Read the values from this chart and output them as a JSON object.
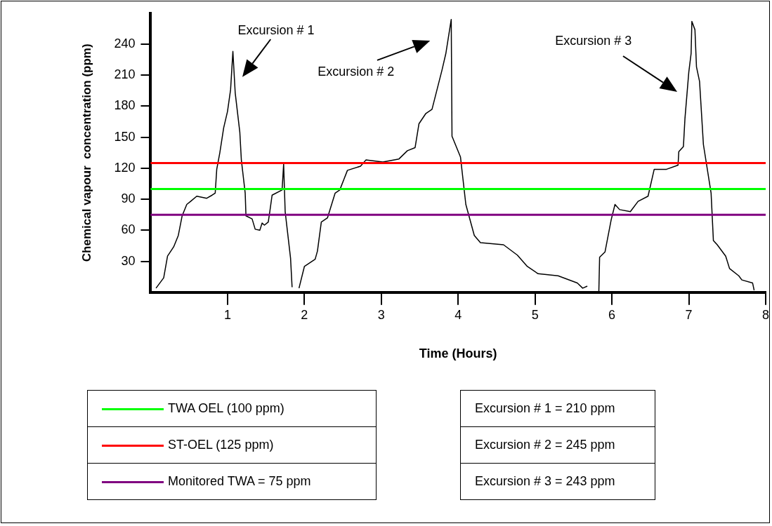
{
  "chart_data": {
    "type": "line",
    "xlabel": "Time (Hours)",
    "ylabel": "Chemical vapour  concentration (ppm)",
    "xlim": [
      0,
      8
    ],
    "xticks": [
      1,
      2,
      3,
      4,
      5,
      6,
      7,
      8
    ],
    "ylim": [
      0,
      270
    ],
    "yticks": [
      30,
      60,
      90,
      120,
      150,
      180,
      210,
      240
    ],
    "grid": false,
    "legend": "bottom",
    "marker": "none",
    "line_style": "solid",
    "series": [
      {
        "color": "#000000",
        "x": [
          0.07,
          0.17,
          0.22,
          0.3,
          0.36,
          0.41,
          0.47,
          0.52,
          0.6,
          0.73,
          0.8,
          0.84,
          0.86,
          0.9,
          0.95,
          1.0,
          1.04,
          1.07,
          1.1,
          1.16,
          1.18,
          1.23,
          1.24,
          1.32,
          1.36,
          1.42,
          1.45,
          1.48,
          1.53,
          1.55,
          1.58,
          1.71,
          1.73,
          1.75,
          1.82,
          1.84,
          1.88,
          1.93,
          2.0,
          2.14,
          2.17,
          2.22,
          2.3,
          2.4,
          2.46,
          2.56,
          2.73,
          2.8,
          3.02,
          3.23,
          3.34,
          3.44,
          3.49,
          3.58,
          3.66,
          3.79,
          3.84,
          3.91,
          3.92,
          4.03,
          4.1,
          4.21,
          4.29,
          4.59,
          4.77,
          4.9,
          5.04,
          5.3,
          5.55,
          5.62,
          5.68,
          5.75,
          5.83,
          5.84,
          5.91,
          5.99,
          6.04,
          6.1,
          6.24,
          6.34,
          6.47,
          6.55,
          6.71,
          6.86,
          6.87,
          6.93,
          6.95,
          7.0,
          7.03,
          7.04,
          7.08,
          7.1,
          7.14,
          7.19,
          7.29,
          7.32,
          7.37,
          7.48,
          7.53,
          7.65,
          7.69,
          7.83,
          7.85
        ],
        "values": [
          4,
          14,
          35,
          44,
          55,
          74,
          85,
          88,
          93,
          91,
          94,
          96,
          119,
          135,
          159,
          175,
          196,
          233,
          193,
          155,
          128,
          96,
          74,
          71,
          61,
          60,
          67,
          65,
          68,
          78,
          94,
          99,
          124,
          78,
          33,
          5,
          null,
          4,
          25,
          32,
          40,
          68,
          72,
          96,
          99,
          118,
          122,
          128,
          126,
          129,
          137,
          140,
          163,
          173,
          177,
          215,
          231,
          264,
          151,
          131,
          85,
          55,
          48,
          46,
          36,
          25,
          18,
          16,
          9,
          4,
          6,
          null,
          1,
          34,
          39,
          70,
          85,
          80,
          78,
          88,
          93,
          119,
          119,
          123,
          136,
          141,
          168,
          213,
          231,
          262,
          254,
          218,
          204,
          143,
          96,
          50,
          46,
          35,
          23,
          16,
          12,
          9,
          2
        ]
      }
    ],
    "ref_lines": [
      {
        "axis": "y",
        "value": 100,
        "label": "TWA OEL (100 ppm)",
        "color": "#00ff00"
      },
      {
        "axis": "y",
        "value": 125,
        "label": "ST-OEL (125 ppm)",
        "color": "#ff0000"
      },
      {
        "axis": "y",
        "value": 75,
        "label": "Monitored TWA = 75 ppm",
        "color": "#800080"
      }
    ],
    "annotations": [
      "Excursion # 1",
      "Excursion # 2",
      "Excursion # 3",
      "Excursion # 1 = 210 ppm",
      "Excursion # 2 = 245 ppm",
      "Excursion # 3 = 243 ppm"
    ]
  }
}
